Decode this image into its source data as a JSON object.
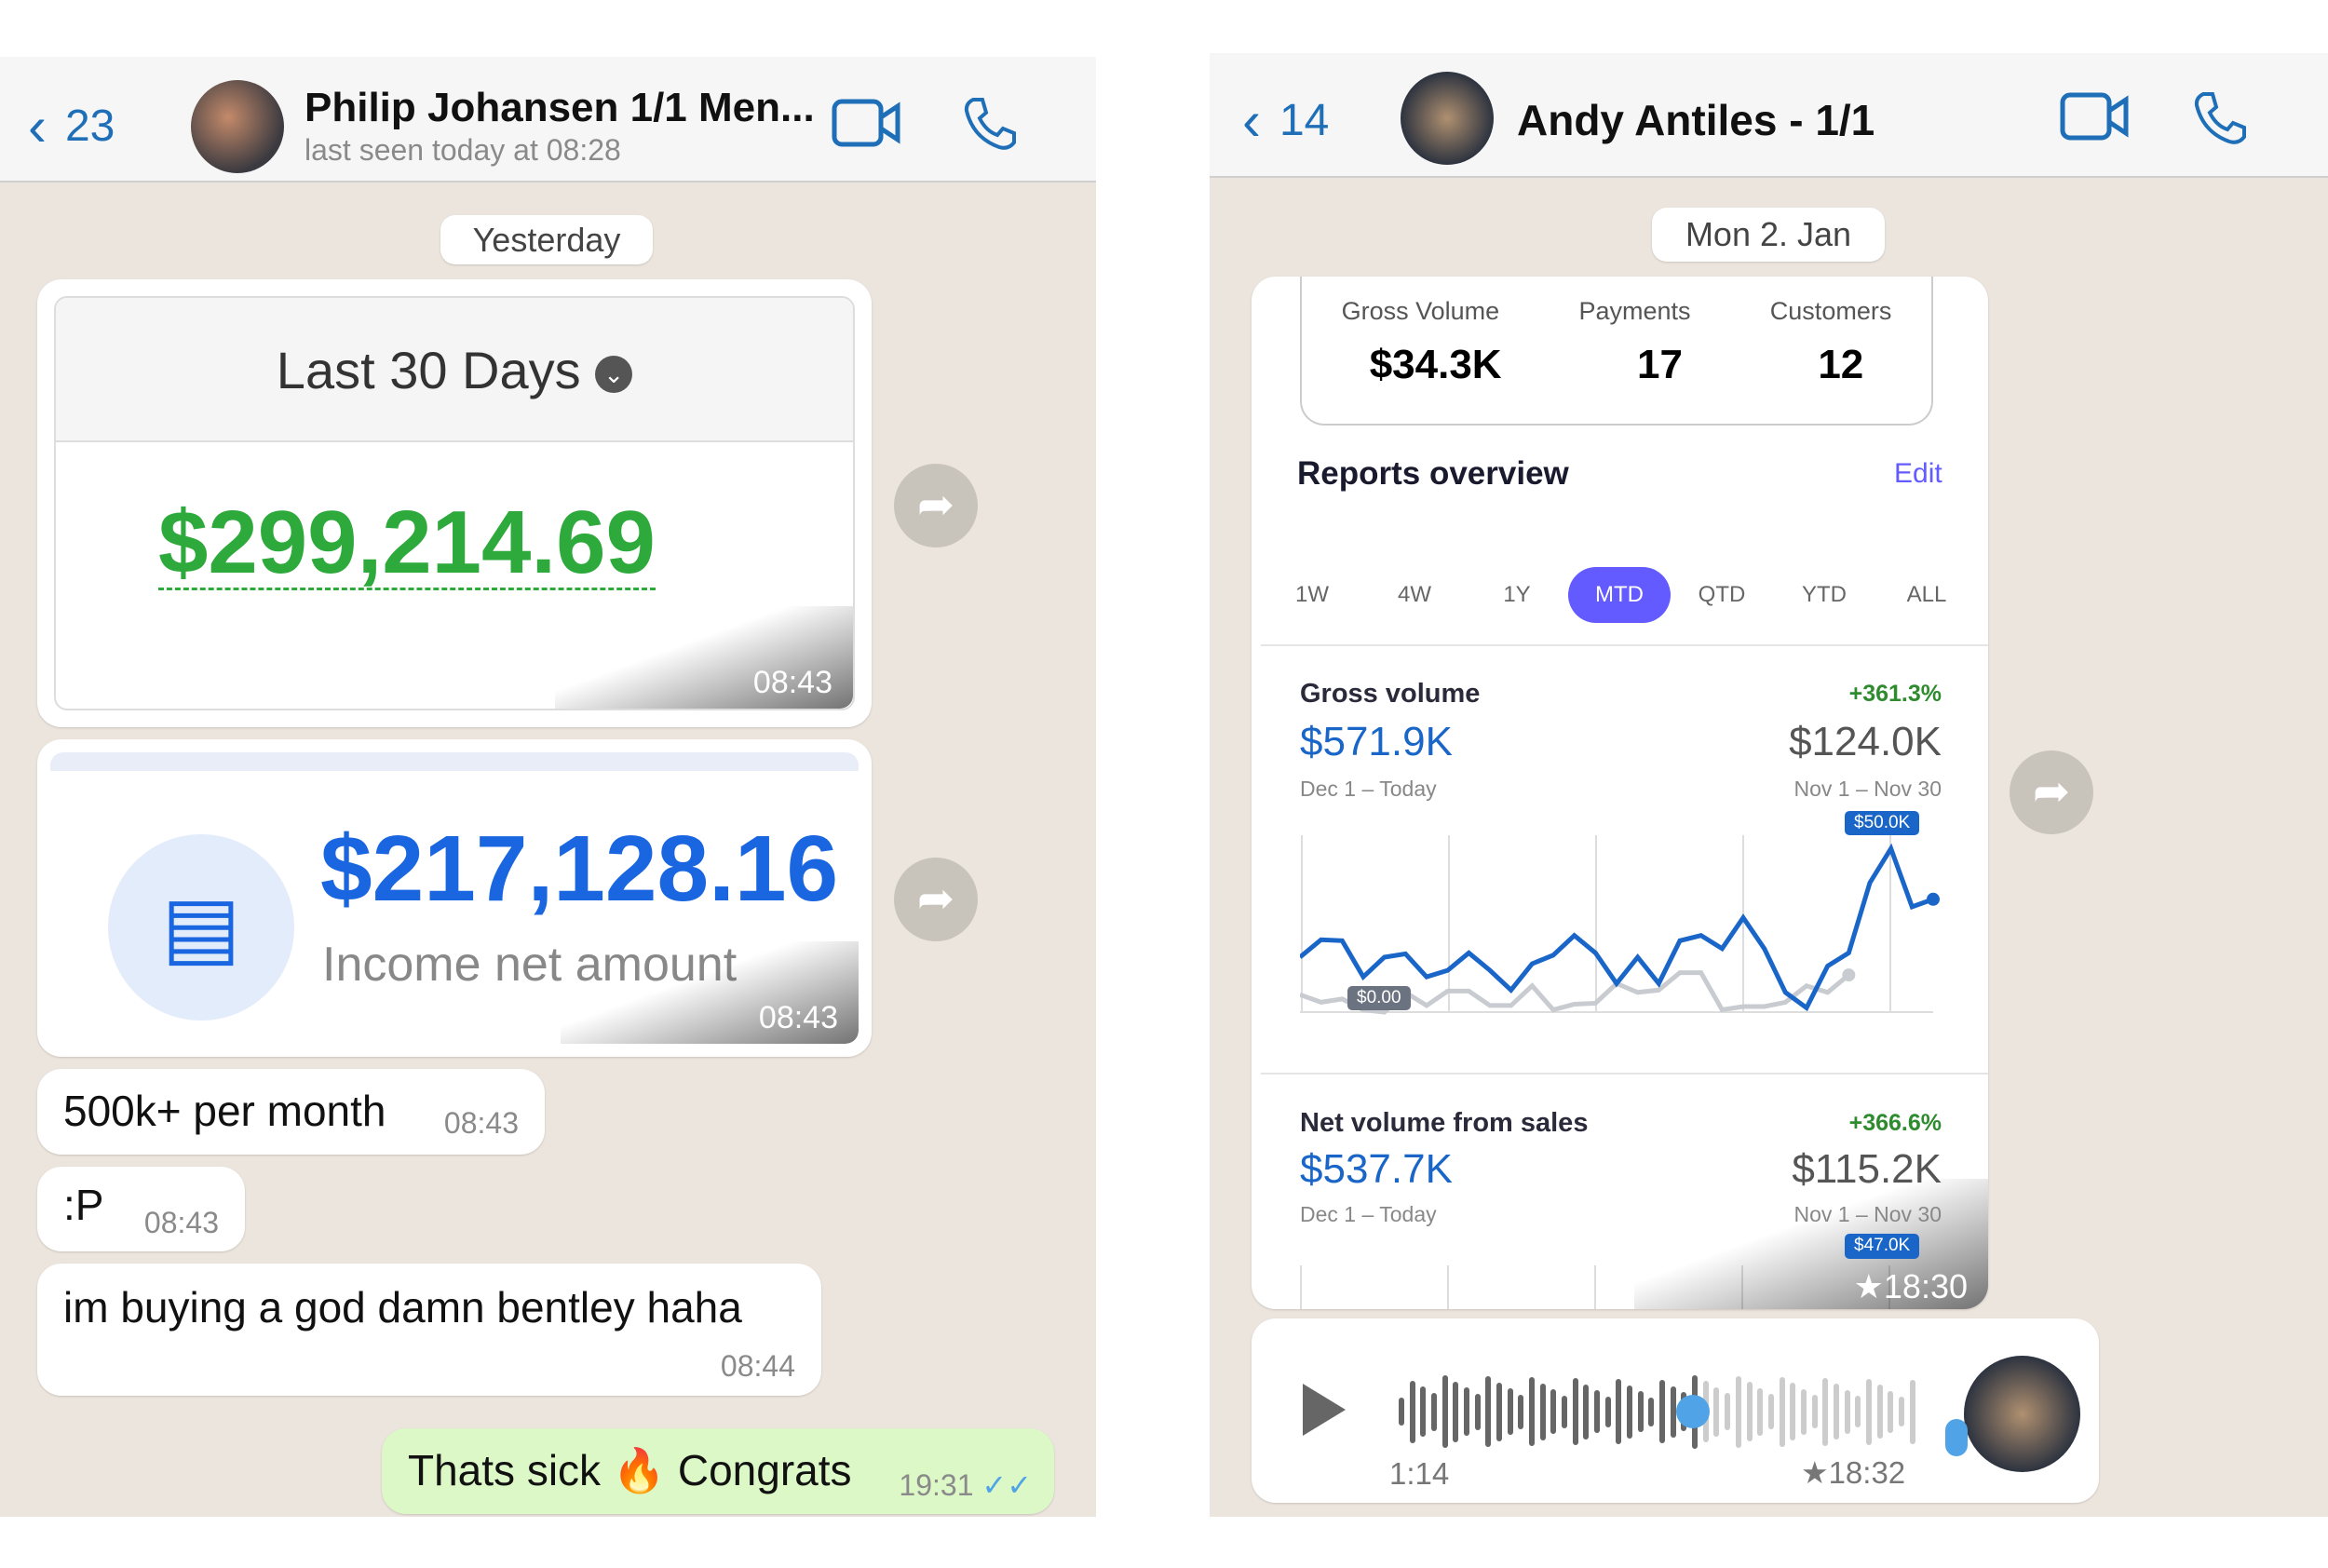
{
  "left": {
    "header": {
      "back_count": "23",
      "title": "Philip Johansen 1/1 Men...",
      "status": "last seen today at 08:28"
    },
    "date_chip": "Yesterday",
    "image1": {
      "period": "Last 30 Days",
      "amount": "$299,214.69",
      "time": "08:43"
    },
    "image2": {
      "amount": "$217,128.16",
      "label": "Income net amount",
      "time": "08:43"
    },
    "messages": [
      {
        "text": "500k+ per month",
        "time": "08:43",
        "dir": "in"
      },
      {
        "text": ":P",
        "time": "08:43",
        "dir": "in"
      },
      {
        "text": "im buying a god damn bentley haha",
        "time": "08:44",
        "dir": "in"
      },
      {
        "text": "Thats sick 🔥 Congrats",
        "time": "19:31",
        "dir": "out",
        "status": "read"
      }
    ]
  },
  "right": {
    "header": {
      "back_count": "14",
      "title": "Andy Antiles - 1/1"
    },
    "date_chip": "Mon 2. Jan",
    "dashboard": {
      "stats": [
        {
          "label": "Gross Volume",
          "value": "$34.3K"
        },
        {
          "label": "Payments",
          "value": "17"
        },
        {
          "label": "Customers",
          "value": "12"
        }
      ],
      "reports_title": "Reports overview",
      "edit": "Edit",
      "tabs": [
        "1W",
        "4W",
        "1Y",
        "MTD",
        "QTD",
        "YTD",
        "ALL"
      ],
      "active_tab": "MTD",
      "gross": {
        "title": "Gross volume",
        "change": "+361.3%",
        "current": "$571.9K",
        "current_range": "Dec 1 – Today",
        "previous": "$124.0K",
        "previous_range": "Nov 1 – Nov 30",
        "max_label": "$50.0K",
        "min_label": "$0.00"
      },
      "net": {
        "title": "Net volume from sales",
        "change": "+366.6%",
        "current": "$537.7K",
        "current_range": "Dec 1 – Today",
        "previous": "$115.2K",
        "previous_range": "Nov 1 – Nov 30",
        "max_label": "$47.0K"
      },
      "time": "★18:30"
    },
    "voice": {
      "duration": "1:14",
      "time": "★18:32",
      "progress": 0.57
    }
  },
  "chart_data": {
    "type": "line",
    "ylim": [
      0,
      50000
    ],
    "grid": true,
    "series": [
      {
        "values": [
          16.7,
          22,
          21.7,
          10.7,
          16.7,
          17.7,
          10.7,
          12.7,
          18,
          12.7,
          6.7,
          14.7,
          17.3,
          23.3,
          18,
          8.7,
          16.7,
          8.7,
          21.7,
          23.3,
          19.3,
          28.7,
          19.3,
          6,
          1.3,
          14,
          18,
          39.3,
          49.7,
          32,
          34.3
        ],
        "unit": "K USD",
        "color": "#1a66c8"
      },
      {
        "values": [
          5.3,
          3,
          4,
          0.7,
          0,
          6,
          2,
          6.4,
          6.4,
          2,
          2,
          8,
          0.7,
          2.4,
          2.7,
          8.7,
          6,
          6.7,
          12,
          12,
          0.7,
          1.7,
          1.7,
          3,
          8,
          6,
          11.3
        ],
        "unit": "K USD",
        "color": "#c8cbd0"
      }
    ]
  },
  "colors": {
    "accent": "#1f6fb8",
    "green_amount": "#2eaa3c",
    "blue_amount": "#1a66e0",
    "stripe": "#635bff",
    "outgoing": "#dcf8c6"
  }
}
